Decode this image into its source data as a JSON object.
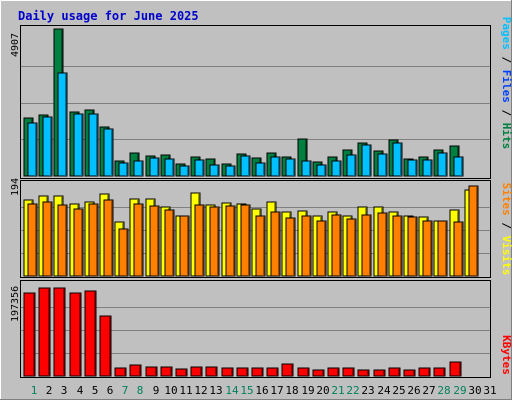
{
  "title": "Daily usage for June 2025",
  "colors": {
    "background": "#c0c0c0",
    "title": "#0000cc",
    "hits": "#008040",
    "files": "#0040ff",
    "pages": "#00c0ff",
    "visits": "#ffff00",
    "sites": "#ff8000",
    "kbytes": "#ff0000",
    "weekend_label": "#00805c",
    "day_label": "#000000"
  },
  "chart_data": [
    {
      "type": "bar",
      "panel": "top",
      "title": "Daily usage for June 2025",
      "y_tick_label": "4907",
      "ylim": [
        0,
        4907
      ],
      "grid": true,
      "legend_position": "right",
      "legend_labels": {
        "pages": "Pages",
        "files": "Files",
        "hits": "Hits",
        "sep1": " / ",
        "sep2": " / "
      },
      "categories": [
        "1",
        "2",
        "3",
        "4",
        "5",
        "6",
        "7",
        "8",
        "9",
        "10",
        "11",
        "12",
        "13",
        "14",
        "15",
        "16",
        "17",
        "18",
        "19",
        "20",
        "21",
        "22",
        "23",
        "24",
        "25",
        "26",
        "27",
        "28",
        "29",
        "30",
        "31"
      ],
      "series": [
        {
          "name": "Hits",
          "values": [
            1940,
            2050,
            4907,
            2130,
            2200,
            1640,
            500,
            780,
            660,
            690,
            390,
            640,
            560,
            390,
            740,
            610,
            760,
            640,
            1240,
            460,
            640,
            860,
            1100,
            830,
            1210,
            580,
            650,
            880,
            1000,
            0,
            0
          ]
        },
        {
          "name": "Pages",
          "values": [
            1780,
            1980,
            3450,
            2080,
            2080,
            1570,
            420,
            510,
            590,
            560,
            350,
            520,
            360,
            350,
            670,
            450,
            640,
            570,
            510,
            360,
            510,
            690,
            1050,
            740,
            1100,
            520,
            520,
            770,
            630,
            0,
            0
          ]
        }
      ]
    },
    {
      "type": "bar",
      "panel": "middle",
      "y_tick_label": "194",
      "ylim": [
        0,
        194
      ],
      "grid": true,
      "legend_position": "right",
      "legend_labels": {
        "sites": "Sites",
        "visits": "Visits",
        "sep1": " / "
      },
      "categories": [
        "1",
        "2",
        "3",
        "4",
        "5",
        "6",
        "7",
        "8",
        "9",
        "10",
        "11",
        "12",
        "13",
        "14",
        "15",
        "16",
        "17",
        "18",
        "19",
        "20",
        "21",
        "22",
        "23",
        "24",
        "25",
        "26",
        "27",
        "28",
        "29",
        "30",
        "31"
      ],
      "series": [
        {
          "name": "Visits",
          "values": [
            160,
            168,
            168,
            152,
            155,
            173,
            113,
            163,
            162,
            146,
            126,
            175,
            150,
            153,
            152,
            142,
            157,
            135,
            137,
            126,
            134,
            127,
            145,
            146,
            135,
            127,
            125,
            116,
            139,
            182,
            0
          ]
        },
        {
          "name": "Sites",
          "values": [
            152,
            157,
            150,
            142,
            151,
            160,
            100,
            151,
            147,
            139,
            126,
            150,
            146,
            147,
            150,
            126,
            136,
            122,
            126,
            117,
            128,
            121,
            129,
            133,
            127,
            125,
            115,
            116,
            113,
            189,
            0
          ]
        }
      ]
    },
    {
      "type": "bar",
      "panel": "bottom",
      "y_tick_label": "197356",
      "ylim": [
        0,
        197356
      ],
      "grid": true,
      "legend_position": "right",
      "legend_labels": {
        "kbytes": "KBytes"
      },
      "categories": [
        "1",
        "2",
        "3",
        "4",
        "5",
        "6",
        "7",
        "8",
        "9",
        "10",
        "11",
        "12",
        "13",
        "14",
        "15",
        "16",
        "17",
        "18",
        "19",
        "20",
        "21",
        "22",
        "23",
        "24",
        "25",
        "26",
        "27",
        "28",
        "29",
        "30",
        "31"
      ],
      "series": [
        {
          "name": "KBytes",
          "values": [
            178000,
            189000,
            189000,
            178000,
            182000,
            128000,
            18000,
            24000,
            19000,
            19000,
            15000,
            19000,
            19000,
            17000,
            17000,
            17000,
            17000,
            26000,
            17000,
            12000,
            17000,
            17000,
            13000,
            13000,
            17000,
            13000,
            17000,
            17000,
            31000,
            0,
            0
          ]
        }
      ]
    }
  ],
  "days": [
    "1",
    "2",
    "3",
    "4",
    "5",
    "6",
    "7",
    "8",
    "9",
    "10",
    "11",
    "12",
    "13",
    "14",
    "15",
    "16",
    "17",
    "18",
    "19",
    "20",
    "21",
    "22",
    "23",
    "24",
    "25",
    "26",
    "27",
    "28",
    "29",
    "30",
    "31"
  ],
  "weekend_days": [
    1,
    7,
    8,
    14,
    15,
    21,
    22,
    28,
    29
  ]
}
